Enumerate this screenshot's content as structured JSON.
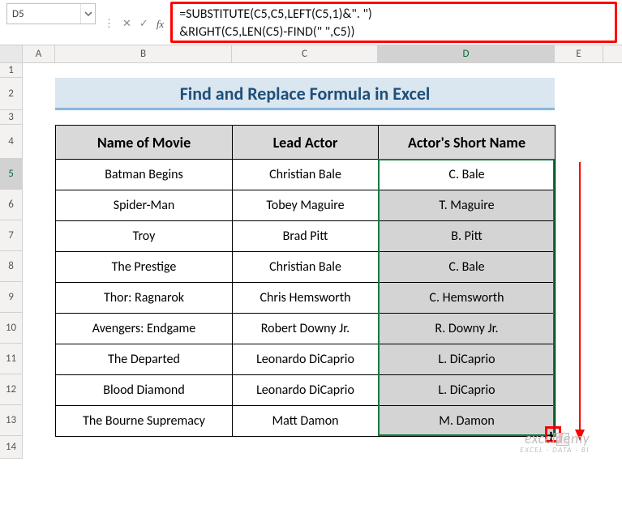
{
  "nameBox": {
    "value": "D5"
  },
  "formula": {
    "line1": "=SUBSTITUTE(C5,C5,LEFT(C5,1)&\". \")",
    "line2": "&RIGHT(C5,LEN(C5)-FIND(\" \",C5))"
  },
  "title": "Find and Replace Formula in Excel",
  "columns": [
    "A",
    "B",
    "C",
    "D",
    "E"
  ],
  "activeColumn": "D",
  "rows": [
    1,
    2,
    3,
    4,
    5,
    6,
    7,
    8,
    9,
    10,
    11,
    12,
    13,
    14
  ],
  "activeRow": 5,
  "rowHeights": {
    "1": 18,
    "2": 40,
    "3": 18,
    "4": 42,
    "5": 38,
    "6": 38,
    "7": 38,
    "8": 38,
    "9": 38,
    "10": 38,
    "11": 38,
    "12": 38,
    "13": 38,
    "14": 28
  },
  "colWidths": {
    "A": 40,
    "B": 218,
    "C": 180,
    "D": 218,
    "E": 60
  },
  "table": {
    "headers": {
      "b": "Name of Movie",
      "c": "Lead Actor",
      "d": "Actor's Short Name"
    },
    "rows": [
      {
        "movie": "Batman Begins",
        "actor": "Christian Bale",
        "short": "C. Bale"
      },
      {
        "movie": "Spider-Man",
        "actor": "Tobey Maguire",
        "short": "T. Maguire"
      },
      {
        "movie": "Troy",
        "actor": "Brad Pitt",
        "short": "B. Pitt"
      },
      {
        "movie": "The Prestige",
        "actor": "Christian Bale",
        "short": "C. Bale"
      },
      {
        "movie": "Thor: Ragnarok",
        "actor": "Chris Hemsworth",
        "short": "C. Hemsworth"
      },
      {
        "movie": "Avengers: Endgame",
        "actor": "Robert Downy Jr.",
        "short": "R. Downy Jr."
      },
      {
        "movie": "The Departed",
        "actor": "Leonardo DiCaprio",
        "short": "L. DiCaprio"
      },
      {
        "movie": "Blood Diamond",
        "actor": "Leonardo DiCaprio",
        "short": "L. DiCaprio"
      },
      {
        "movie": "The Bourne Supremacy",
        "actor": "Matt Damon",
        "short": "M. Damon"
      }
    ]
  },
  "watermark": {
    "line1": "exceldemy",
    "line2": "EXCEL · DATA · BI"
  },
  "colors": {
    "titleBg": "#dae6f0",
    "titleFg": "#1f4e79",
    "headerBg": "#d9d9d9",
    "selGreen": "#107c41",
    "highlightRed": "#ff0000",
    "fillGrey": "#d4d4d4"
  }
}
